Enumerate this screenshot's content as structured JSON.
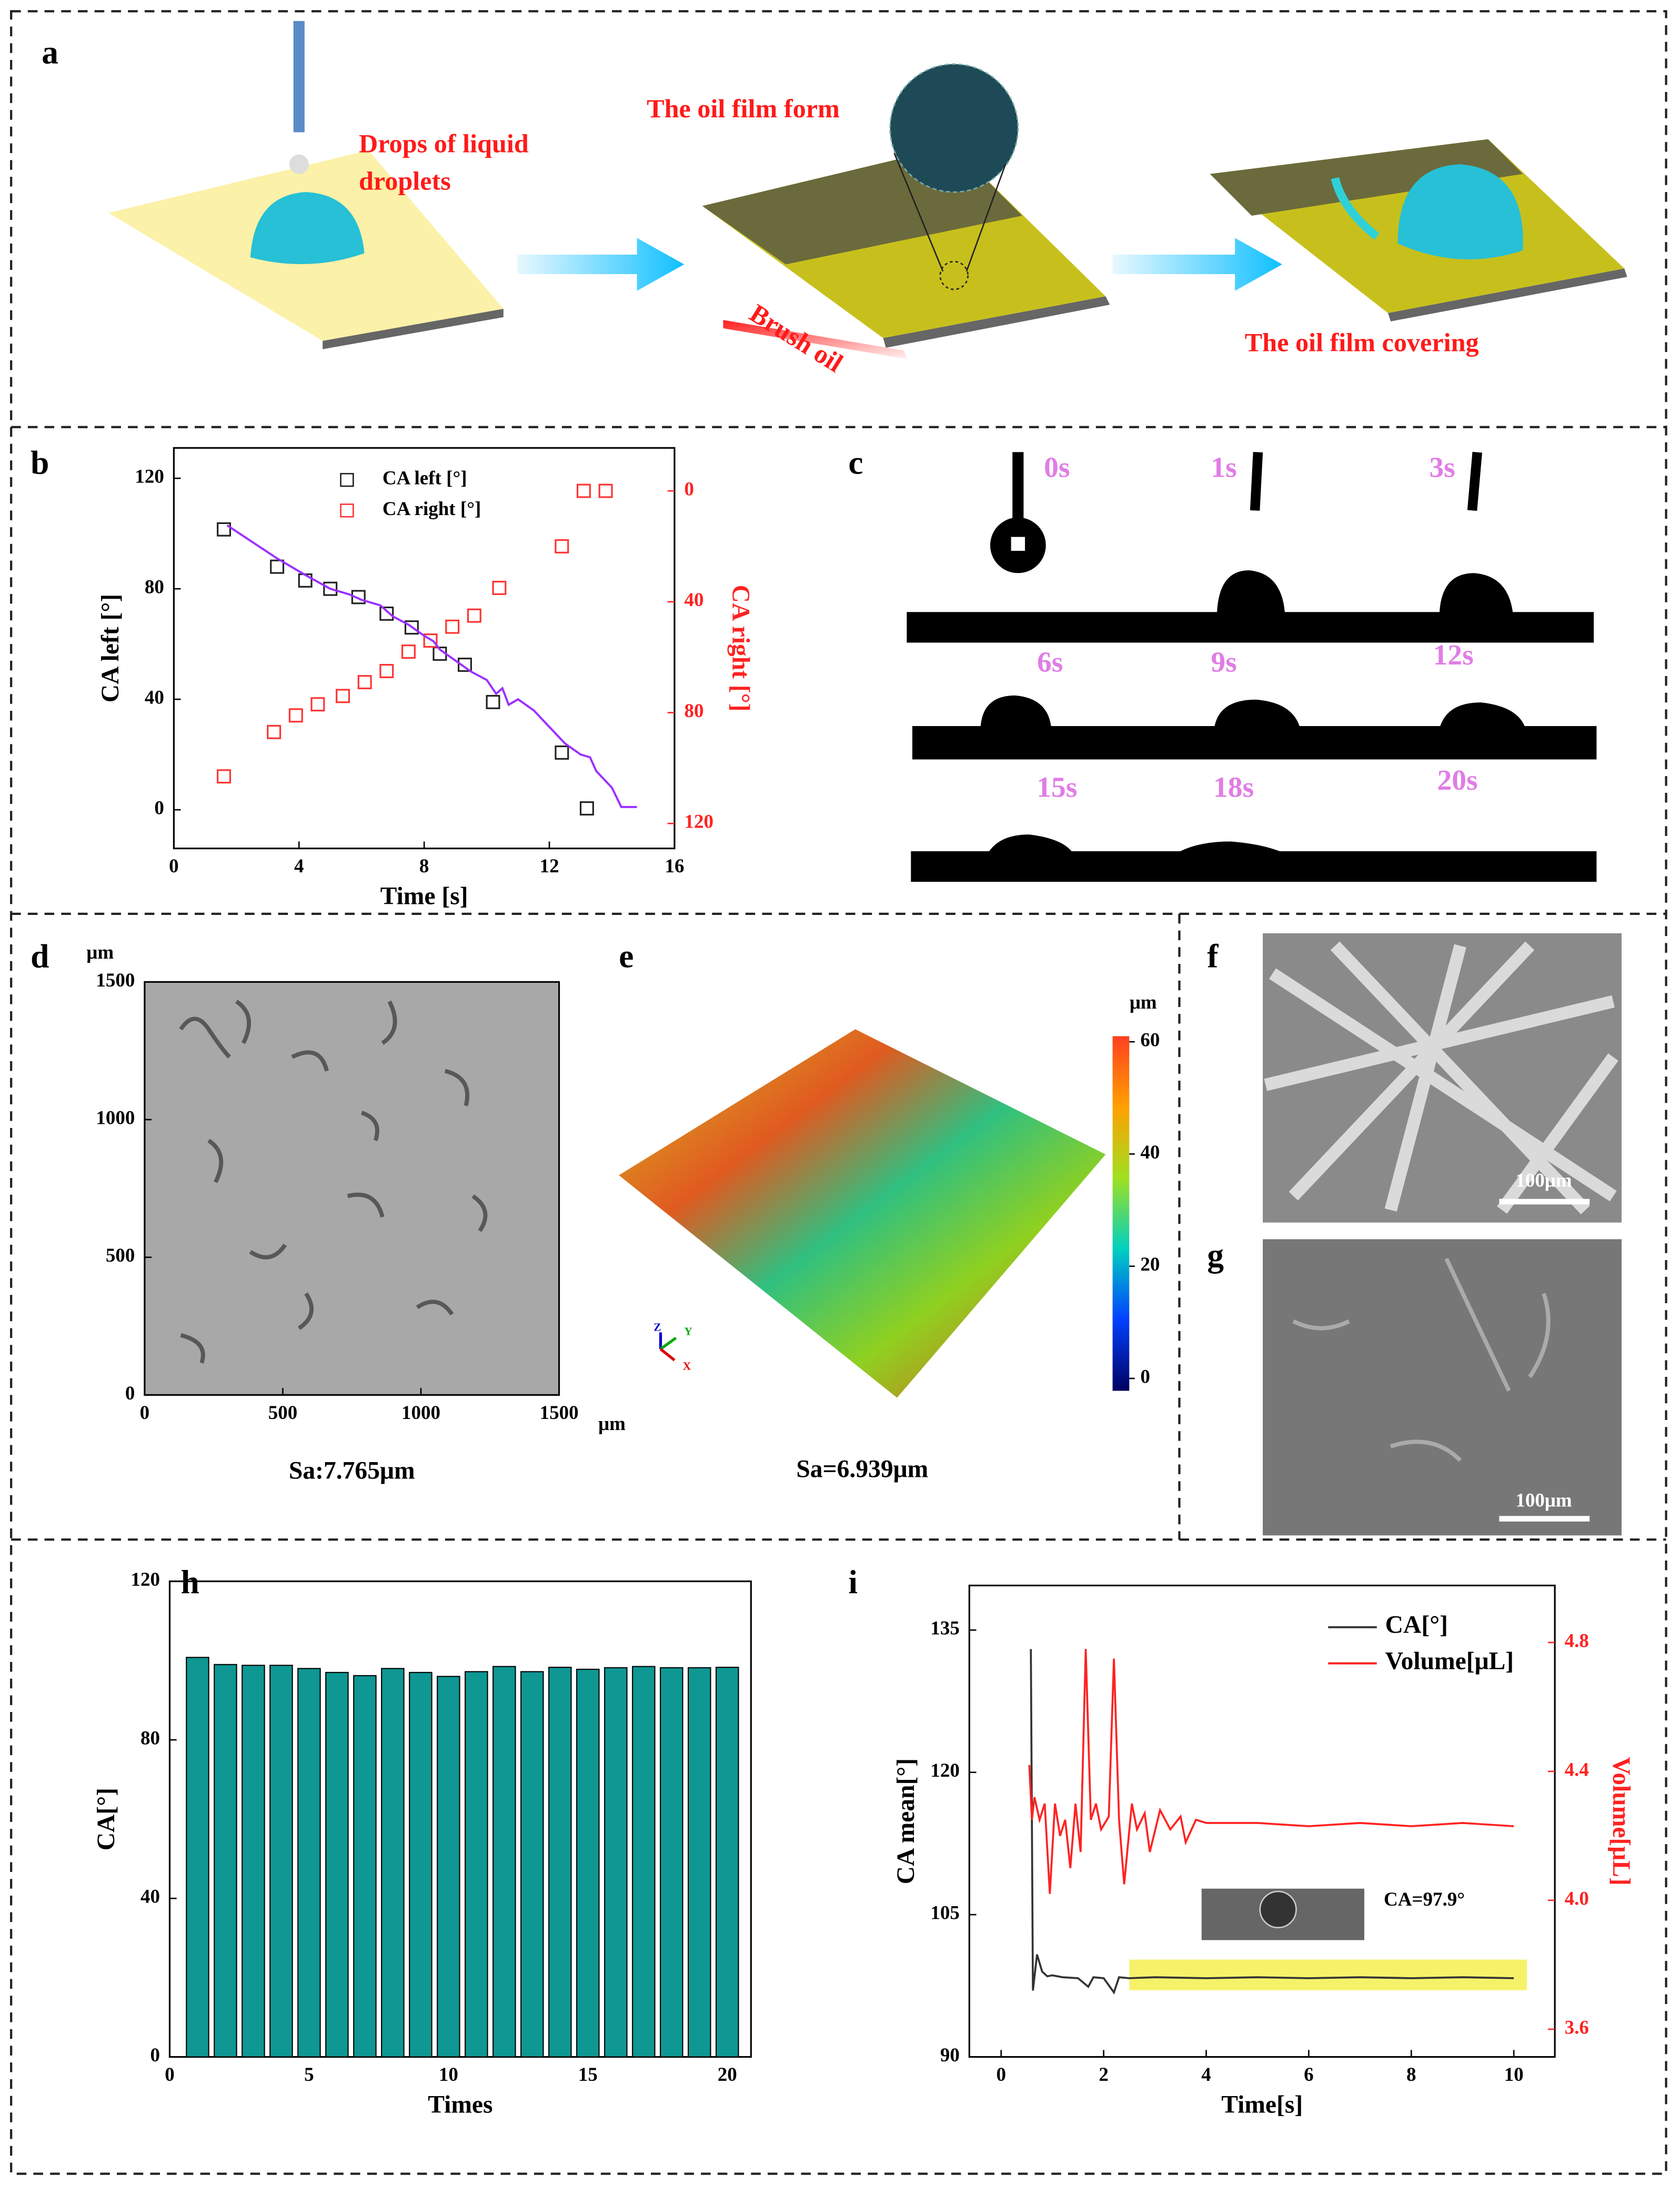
{
  "panels": {
    "labels": [
      "a",
      "b",
      "c",
      "d",
      "e",
      "f",
      "g",
      "h",
      "i"
    ]
  },
  "schematic": {
    "texts": [
      "Drops of liquid",
      "droplets",
      "The oil film form",
      "Brush oil",
      "The oil film covering"
    ]
  },
  "time_lapse": {
    "labels": [
      "0s",
      "1s",
      "3s",
      "6s",
      "9s",
      "12s",
      "15s",
      "18s",
      "20s"
    ]
  },
  "profile_3d": {
    "caption": "Sa=6.939μm",
    "axes": [
      "Z",
      "Y",
      "X"
    ],
    "colorbar": {
      "unit": "μm",
      "lim": [
        -2.2,
        61
      ],
      "ticks": [
        0,
        20,
        40,
        60
      ]
    }
  },
  "sem": {
    "scale_bars": [
      "100μm",
      "100μm"
    ]
  },
  "chart_data": [
    {
      "type": "scatter",
      "xlabel": "Time [s]",
      "ylabel": "CA left [°]",
      "y2label": "CA right [°]",
      "xlim": [
        0,
        16
      ],
      "xticks": [
        0,
        4,
        8,
        12,
        16
      ],
      "ylim": [
        -14,
        131
      ],
      "yticks": [
        0,
        40,
        80,
        120
      ],
      "y2lim": [
        129,
        -15.5
      ],
      "y2ticks": [
        0,
        40,
        80,
        120
      ],
      "series": [
        {
          "name": "CA left [°]",
          "color": "#222222",
          "marker": "square",
          "x": [
            1.6,
            3.3,
            4.2,
            5.0,
            5.9,
            6.8,
            7.6,
            8.5,
            9.3,
            10.2,
            12.4,
            13.2
          ],
          "values": [
            101.5,
            88,
            83,
            80,
            77,
            71,
            66,
            56.5,
            52.5,
            39,
            20.7,
            0.5
          ]
        },
        {
          "name": "CA right [°]",
          "color": "#ff3333",
          "marker": "square",
          "axis": "y2",
          "x": [
            1.6,
            3.2,
            3.9,
            4.6,
            5.4,
            6.1,
            6.8,
            7.5,
            8.2,
            8.9,
            9.6,
            10.4,
            12.4,
            13.1,
            13.8
          ],
          "values": [
            103,
            87,
            81,
            77,
            74,
            69,
            65,
            58,
            54,
            49,
            45,
            35,
            20,
            0,
            0
          ]
        },
        {
          "color": "#9b30ff",
          "x": [
            1.7,
            2.5,
            3.3,
            4.2,
            5.0,
            5.6,
            6.0,
            6.6,
            7.0,
            7.5,
            8.0,
            8.3,
            8.5,
            9.0,
            9.5,
            10.0,
            10.3,
            10.5,
            10.7,
            11.0,
            11.5,
            12.0,
            12.5,
            13.0,
            13.3,
            13.5,
            14.0,
            14.3,
            14.8
          ],
          "values": [
            103,
            97,
            91,
            85,
            80,
            78,
            76,
            74,
            70,
            67,
            63,
            61,
            58,
            54,
            50,
            47,
            42,
            44,
            38,
            40,
            36,
            30,
            24,
            20,
            19,
            14,
            8,
            1,
            1
          ]
        }
      ]
    },
    {
      "type": "image",
      "xlim": [
        0,
        1500
      ],
      "ylim": [
        0,
        1500
      ],
      "xticks": [
        0,
        500,
        1000,
        1500
      ],
      "yticks": [
        0,
        500,
        1000,
        1500
      ],
      "x_unit": "μm",
      "y_unit": "μm",
      "caption": "Sa:7.765μm"
    },
    {
      "type": "bar",
      "xlabel": "Times",
      "ylabel": "CA[°]",
      "color": "#0e9793",
      "xlim": [
        0,
        20.85
      ],
      "xticks": [
        0,
        5,
        10,
        15,
        20
      ],
      "ylim": [
        0,
        120
      ],
      "yticks": [
        0,
        40,
        80,
        120
      ],
      "x": [
        1,
        2,
        3,
        4,
        5,
        6,
        7,
        8,
        9,
        10,
        11,
        12,
        13,
        14,
        15,
        16,
        17,
        18,
        19,
        20
      ],
      "values": [
        100.8,
        99,
        98.8,
        98.8,
        98,
        97,
        96.2,
        98,
        97,
        96,
        97.2,
        98.5,
        97.2,
        98.3,
        97.8,
        98.2,
        98.5,
        98.2,
        98.2,
        98.3
      ]
    },
    {
      "type": "line",
      "xlabel": "Time[s]",
      "ylabel": "CA mean[°]",
      "y2label": "Volume[μL]",
      "annotation": "CA=97.9°",
      "legend": "upper right",
      "xlim": [
        -0.62,
        10.8
      ],
      "xticks": [
        0,
        2,
        4,
        6,
        8,
        10
      ],
      "ylim": [
        90,
        139.7
      ],
      "yticks": [
        90,
        105,
        120,
        135
      ],
      "y2lim": [
        3.514,
        4.977
      ],
      "y2ticks": [
        3.6,
        {
          "value": 4,
          "label": "4.0"
        },
        4.4,
        4.8
      ],
      "series": [
        {
          "name": "CA[°]",
          "color": "#333333",
          "x": [
            0.58,
            0.62,
            0.7,
            0.8,
            0.9,
            1.0,
            1.2,
            1.5,
            1.7,
            1.8,
            2.0,
            2.2,
            2.3,
            2.5,
            3,
            4,
            5,
            6,
            7,
            8,
            9,
            10
          ],
          "values": [
            133,
            97,
            100.8,
            99,
            98.5,
            98.6,
            98.4,
            98.3,
            97.4,
            98.4,
            98.3,
            96.8,
            98.4,
            98.3,
            98.4,
            98.3,
            98.4,
            98.3,
            98.4,
            98.3,
            98.4,
            98.3
          ]
        },
        {
          "name": "Volume[μL]",
          "color": "#ff2222",
          "axis": "y2",
          "x": [
            0.55,
            0.6,
            0.65,
            0.75,
            0.85,
            0.95,
            1.05,
            1.15,
            1.25,
            1.35,
            1.45,
            1.55,
            1.65,
            1.75,
            1.85,
            1.95,
            2.1,
            2.2,
            2.3,
            2.4,
            2.55,
            2.65,
            2.8,
            2.9,
            3.1,
            3.3,
            3.5,
            3.6,
            3.8,
            4,
            5,
            6,
            7,
            8,
            9,
            10
          ],
          "values": [
            4.42,
            4.25,
            4.32,
            4.25,
            4.3,
            4.02,
            4.3,
            4.2,
            4.25,
            4.1,
            4.3,
            4.15,
            4.78,
            4.25,
            4.3,
            4.22,
            4.26,
            4.75,
            4.25,
            4.05,
            4.3,
            4.22,
            4.27,
            4.15,
            4.28,
            4.22,
            4.26,
            4.18,
            4.25,
            4.24,
            4.24,
            4.23,
            4.24,
            4.23,
            4.24,
            4.23
          ]
        }
      ]
    }
  ]
}
